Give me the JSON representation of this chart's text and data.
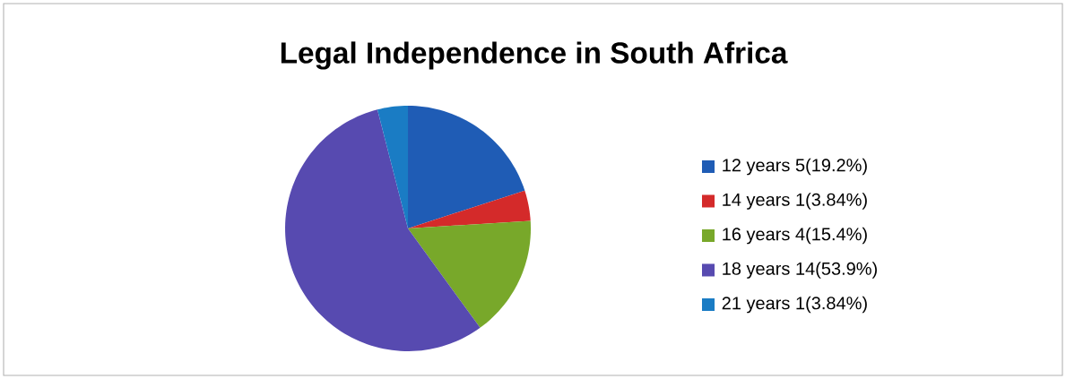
{
  "chart_data": {
    "type": "pie",
    "title": "Legal Independence in South Africa",
    "categories": [
      "12 years 5(19.2%)",
      "14 years 1(3.84%)",
      "16 years 4(15.4%)",
      "18 years 14(53.9%)",
      "21 years 1(3.84%)"
    ],
    "values": [
      5,
      1,
      4,
      14,
      1
    ],
    "colors": [
      "#1f5cb5",
      "#d42a2a",
      "#78a82a",
      "#574ab0",
      "#1a7cc4"
    ],
    "legend": "right"
  }
}
